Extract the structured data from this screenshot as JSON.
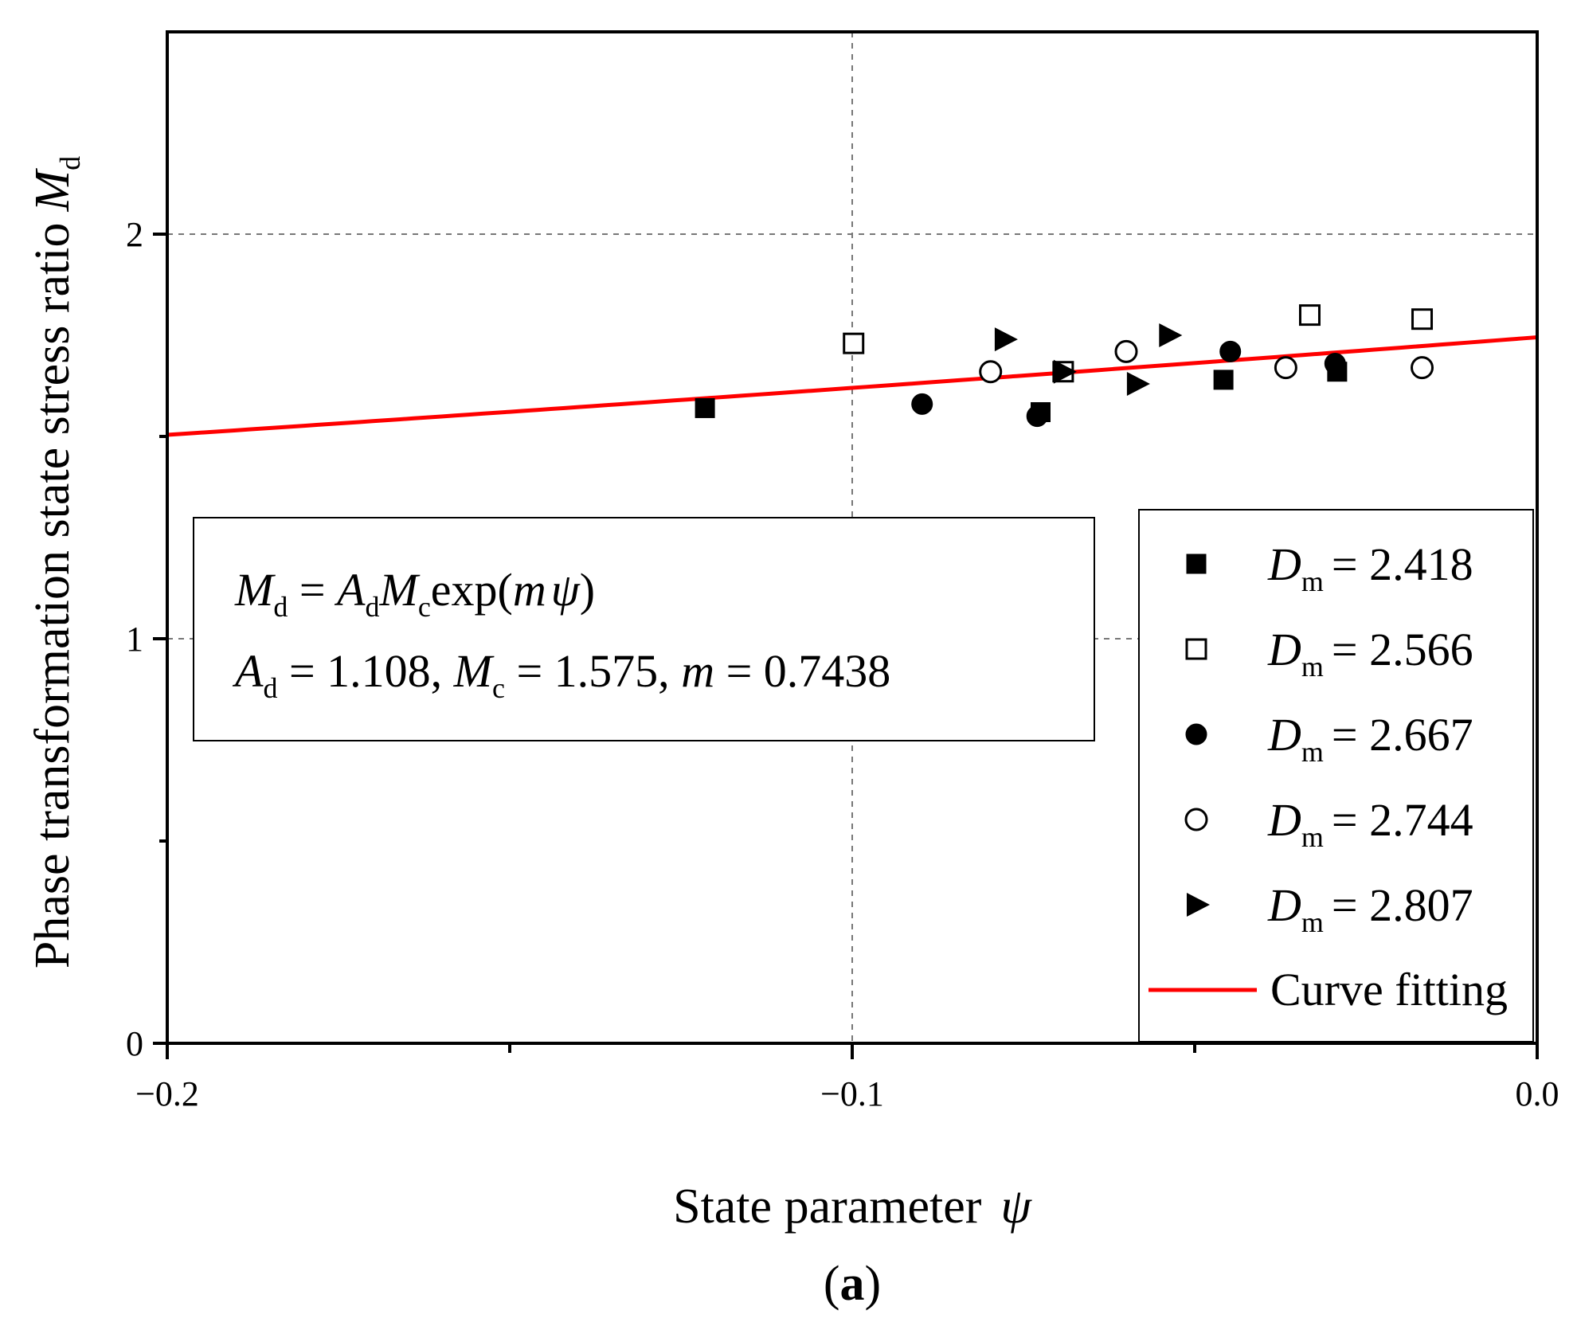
{
  "chart_data": {
    "type": "scatter",
    "title": "",
    "xlabel": "State parameter",
    "xlabel_symbol": "ψ",
    "ylabel": "Phase transformation state stress ratio",
    "ylabel_symbol": "M",
    "ylabel_subscript": "d",
    "xlim": [
      -0.2,
      0.0
    ],
    "ylim": [
      0,
      2.5
    ],
    "x_ticks": [
      -0.2,
      -0.1,
      0.0
    ],
    "x_tick_labels": [
      "−0.2",
      "−0.1",
      "0.0"
    ],
    "x_minor_ticks": [
      -0.15,
      -0.05
    ],
    "y_ticks": [
      0,
      1,
      2
    ],
    "y_tick_labels": [
      "0",
      "1",
      "2"
    ],
    "y_minor_ticks": [
      0.5,
      1.5
    ],
    "grid_x": [
      -0.1
    ],
    "grid_y": [
      1,
      2
    ],
    "panel_label": "(a)",
    "panel_letter": "a",
    "series": [
      {
        "name": "D_m = 2.418",
        "symbol": "D",
        "subscript": "m",
        "value_text": "= 2.418",
        "marker": "square-filled",
        "x": [
          -0.1215,
          -0.0725,
          -0.0458,
          -0.0292
        ],
        "y": [
          1.57,
          1.56,
          1.64,
          1.66
        ]
      },
      {
        "name": "D_m = 2.566",
        "symbol": "D",
        "subscript": "m",
        "value_text": "= 2.566",
        "marker": "square-open",
        "x": [
          -0.0998,
          -0.0692,
          -0.0332,
          -0.0168
        ],
        "y": [
          1.73,
          1.66,
          1.8,
          1.79
        ]
      },
      {
        "name": "D_m = 2.667",
        "symbol": "D",
        "subscript": "m",
        "value_text": "= 2.667",
        "marker": "circle-filled",
        "x": [
          -0.0898,
          -0.073,
          -0.0448,
          -0.0295
        ],
        "y": [
          1.58,
          1.55,
          1.71,
          1.68
        ]
      },
      {
        "name": "D_m = 2.744",
        "symbol": "D",
        "subscript": "m",
        "value_text": "= 2.744",
        "marker": "circle-open",
        "x": [
          -0.0798,
          -0.06,
          -0.0367,
          -0.0168
        ],
        "y": [
          1.66,
          1.71,
          1.67,
          1.67
        ]
      },
      {
        "name": "D_m = 2.807",
        "symbol": "D",
        "subscript": "m",
        "value_text": "= 2.807",
        "marker": "triangle-right-filled",
        "x": [
          -0.0778,
          -0.0692,
          -0.0585,
          -0.0538
        ],
        "y": [
          1.74,
          1.66,
          1.63,
          1.75
        ]
      }
    ],
    "fit": {
      "name": "Curve fitting",
      "color": "#ff0000",
      "equation": "M_d = A_d M_c exp(m ψ)",
      "params": {
        "A_d": 1.108,
        "M_c": 1.575,
        "m": 0.7438
      },
      "x_range": [
        -0.2,
        0.0
      ]
    },
    "annotation": {
      "eq_lhs": "M",
      "eq_lhs_sub": "d",
      "eq_equals": " = ",
      "eq_a": "A",
      "eq_a_sub": "d",
      "eq_m": "M",
      "eq_m_sub": "c",
      "eq_exp": "exp(",
      "eq_var": "m",
      "eq_psi": "ψ",
      "eq_close": ")",
      "params_a": "A",
      "params_a_sub": "d",
      "params_a_val": " = 1.108, ",
      "params_m": "M",
      "params_m_sub": "c",
      "params_m_val": " = 1.575, ",
      "params_var": "m",
      "params_var_val": " = 0.7438"
    },
    "legend_position": "bottom-right"
  }
}
